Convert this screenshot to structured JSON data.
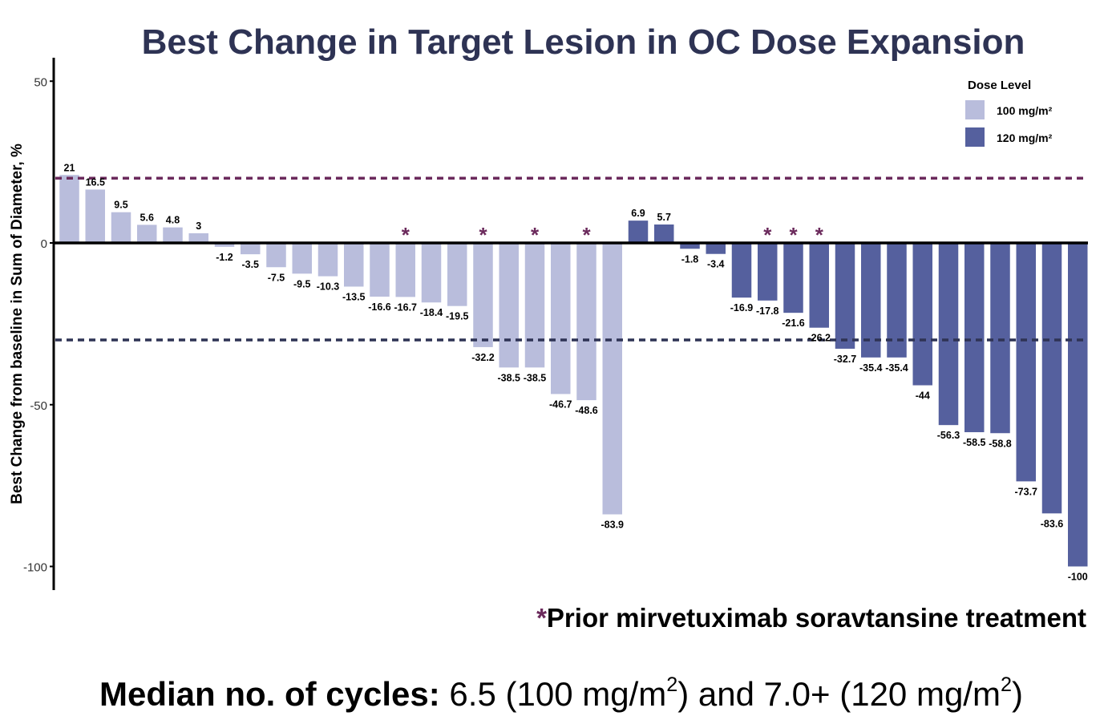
{
  "title": "Best Change in Target Lesion in OC Dose Expansion",
  "footnote": {
    "star": "*",
    "text": "Prior mirvetuximab soravtansine treatment"
  },
  "median": {
    "label": "Median no. of cycles:",
    "text1": " 6.5 (100 mg/m",
    "sup1": "2",
    "text2": ") and 7.0+ (120 mg/m",
    "sup2": "2",
    "text3": ")"
  },
  "chart_data": {
    "type": "bar",
    "ylabel": "Best Change from baseline in Sum of Diameter, %",
    "ylim": [
      -107,
      57
    ],
    "yticks": [
      50,
      0,
      -50,
      -100
    ],
    "reference_lines": [
      {
        "y": 20,
        "color": "#6b2a5c",
        "style": "dashed"
      },
      {
        "y": -30,
        "color": "#2e3354",
        "style": "dashed"
      }
    ],
    "legend": {
      "title": "Dose Level",
      "position": "top-right",
      "entries": [
        {
          "label": "100 mg/m²",
          "color": "#b9bddc"
        },
        {
          "label": "120 mg/m²",
          "color": "#55609e"
        }
      ]
    },
    "star_color": "#6b2a5c",
    "series": [
      {
        "name": "100 mg/m²",
        "color": "#b9bddc",
        "values": [
          21,
          16.5,
          9.5,
          5.6,
          4.8,
          3,
          -1.2,
          -3.5,
          -7.5,
          -9.5,
          -10.3,
          -13.5,
          -16.6,
          -16.7,
          -18.4,
          -19.5,
          -32.2,
          -38.5,
          -38.5,
          -46.7,
          -48.6,
          -83.9
        ],
        "labels": [
          "21",
          "16.5",
          "9.5",
          "5.6",
          "4.8",
          "3",
          "-1.2",
          "-3.5",
          "-7.5",
          "-9.5",
          "-10.3",
          "-13.5",
          "-16.6",
          "-16.7",
          "-18.4",
          "-19.5",
          "-32.2",
          "-38.5",
          "-38.5",
          "-46.7",
          "-48.6",
          "-83.9"
        ],
        "prior_treatment": [
          false,
          false,
          false,
          false,
          false,
          false,
          false,
          false,
          false,
          false,
          false,
          false,
          false,
          true,
          false,
          false,
          true,
          false,
          true,
          false,
          true,
          false
        ]
      },
      {
        "name": "120 mg/m²",
        "color": "#55609e",
        "values": [
          6.9,
          5.7,
          -1.8,
          -3.4,
          -16.9,
          -17.8,
          -21.6,
          -26.2,
          -32.7,
          -35.4,
          -35.4,
          -44,
          -56.3,
          -58.5,
          -58.8,
          -73.7,
          -83.6,
          -100
        ],
        "labels": [
          "6.9",
          "5.7",
          "-1.8",
          "-3.4",
          "-16.9",
          "-17.8",
          "-21.6",
          "-26.2",
          "-32.7",
          "-35.4",
          "-35.4",
          "-44",
          "-56.3",
          "-58.5",
          "-58.8",
          "-73.7",
          "-83.6",
          "-100"
        ],
        "prior_treatment": [
          false,
          false,
          false,
          false,
          false,
          true,
          true,
          true,
          false,
          false,
          false,
          false,
          false,
          false,
          false,
          false,
          false,
          false
        ]
      }
    ]
  }
}
